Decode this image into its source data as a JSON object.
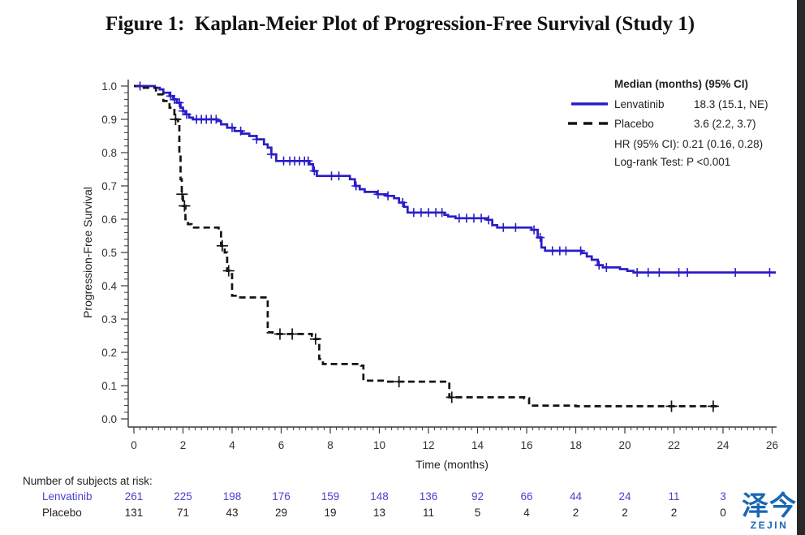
{
  "title": "Figure 1:  Kaplan-Meier Plot of Progression-Free Survival (Study 1)",
  "colors": {
    "lenvatinib_curve": "#2a1cc8",
    "lenvatinib_text": "#4a42cc",
    "placebo_curve": "#141414",
    "axis": "#3a3a3a",
    "watermark_blue": "#1a67b2"
  },
  "watermark": {
    "cjk": "泽今",
    "latin": "ZEJIN"
  },
  "chart_data": {
    "type": "line",
    "subtype": "kaplan-meier-step",
    "title": "Figure 1: Kaplan-Meier Plot of Progression-Free Survival (Study 1)",
    "xlabel": "Time (months)",
    "ylabel": "Progression-Free Survival",
    "xlim": [
      0,
      26
    ],
    "ylim": [
      0.0,
      1.0
    ],
    "xticks": [
      0,
      2,
      4,
      6,
      8,
      10,
      12,
      14,
      16,
      18,
      20,
      22,
      24,
      26
    ],
    "yticks": [
      0.0,
      0.1,
      0.2,
      0.3,
      0.4,
      0.5,
      0.6,
      0.7,
      0.8,
      0.9,
      1.0
    ],
    "x_minor_step": 0.25,
    "y_minor_step": 0.02,
    "grid": false,
    "legend": {
      "position": "top-right",
      "header": "Median (months) (95% CI)",
      "entries": [
        {
          "name": "Lenvatinib",
          "median": "18.3 (15.1, NE)",
          "style": "solid"
        },
        {
          "name": "Placebo",
          "median": "3.6 (2.2, 3.7)",
          "style": "dashed"
        }
      ],
      "hr_text": "HR (95% CI): 0.21 (0.16, 0.28)",
      "logrank_text": "Log-rank Test: P <0.001"
    },
    "series": [
      {
        "name": "Lenvatinib",
        "steps": [
          [
            0,
            1.0
          ],
          [
            0.85,
            0.995
          ],
          [
            1.05,
            0.99
          ],
          [
            1.2,
            0.98
          ],
          [
            1.45,
            0.97
          ],
          [
            1.6,
            0.96
          ],
          [
            1.75,
            0.95
          ],
          [
            1.9,
            0.935
          ],
          [
            2.0,
            0.925
          ],
          [
            2.1,
            0.915
          ],
          [
            2.25,
            0.905
          ],
          [
            2.4,
            0.9
          ],
          [
            3.4,
            0.895
          ],
          [
            3.55,
            0.885
          ],
          [
            3.8,
            0.875
          ],
          [
            4.1,
            0.865
          ],
          [
            4.4,
            0.857
          ],
          [
            4.7,
            0.85
          ],
          [
            5.0,
            0.84
          ],
          [
            5.3,
            0.825
          ],
          [
            5.45,
            0.815
          ],
          [
            5.6,
            0.795
          ],
          [
            5.8,
            0.775
          ],
          [
            7.15,
            0.765
          ],
          [
            7.3,
            0.745
          ],
          [
            7.45,
            0.73
          ],
          [
            8.8,
            0.72
          ],
          [
            9.0,
            0.7
          ],
          [
            9.2,
            0.69
          ],
          [
            9.4,
            0.682
          ],
          [
            9.9,
            0.675
          ],
          [
            10.3,
            0.67
          ],
          [
            10.6,
            0.663
          ],
          [
            10.8,
            0.65
          ],
          [
            11.0,
            0.637
          ],
          [
            11.15,
            0.62
          ],
          [
            12.65,
            0.613
          ],
          [
            12.8,
            0.608
          ],
          [
            13.1,
            0.603
          ],
          [
            14.4,
            0.598
          ],
          [
            14.6,
            0.582
          ],
          [
            14.8,
            0.575
          ],
          [
            16.2,
            0.568
          ],
          [
            16.45,
            0.545
          ],
          [
            16.6,
            0.515
          ],
          [
            16.75,
            0.505
          ],
          [
            18.25,
            0.498
          ],
          [
            18.45,
            0.488
          ],
          [
            18.65,
            0.478
          ],
          [
            18.9,
            0.462
          ],
          [
            19.1,
            0.455
          ],
          [
            19.8,
            0.45
          ],
          [
            20.1,
            0.445
          ],
          [
            20.35,
            0.44
          ],
          [
            26.15,
            0.44
          ]
        ],
        "censor_x": [
          0.25,
          1.5,
          1.65,
          1.85,
          2.0,
          2.15,
          2.55,
          2.75,
          2.95,
          3.15,
          3.35,
          4.0,
          4.35,
          5.0,
          5.6,
          6.1,
          6.35,
          6.55,
          6.75,
          6.95,
          7.1,
          7.35,
          8.05,
          8.35,
          9.05,
          9.95,
          10.35,
          10.95,
          11.4,
          11.7,
          12.0,
          12.3,
          12.55,
          13.25,
          13.55,
          13.85,
          14.15,
          14.45,
          15.05,
          15.55,
          16.3,
          16.55,
          17.05,
          17.35,
          17.6,
          18.2,
          18.95,
          19.25,
          20.5,
          20.95,
          21.4,
          22.2,
          22.55,
          24.5,
          25.9
        ]
      },
      {
        "name": "Placebo",
        "steps": [
          [
            0,
            1.0
          ],
          [
            0.4,
            0.995
          ],
          [
            0.9,
            0.975
          ],
          [
            1.2,
            0.955
          ],
          [
            1.45,
            0.935
          ],
          [
            1.65,
            0.91
          ],
          [
            1.7,
            0.9
          ],
          [
            1.8,
            0.885
          ],
          [
            1.85,
            0.8
          ],
          [
            1.9,
            0.72
          ],
          [
            1.95,
            0.675
          ],
          [
            2.0,
            0.64
          ],
          [
            2.1,
            0.6
          ],
          [
            2.2,
            0.585
          ],
          [
            2.35,
            0.575
          ],
          [
            3.45,
            0.565
          ],
          [
            3.55,
            0.52
          ],
          [
            3.7,
            0.5
          ],
          [
            3.8,
            0.445
          ],
          [
            3.9,
            0.435
          ],
          [
            4.0,
            0.37
          ],
          [
            4.2,
            0.365
          ],
          [
            5.45,
            0.26
          ],
          [
            5.65,
            0.255
          ],
          [
            7.25,
            0.25
          ],
          [
            7.35,
            0.24
          ],
          [
            7.55,
            0.18
          ],
          [
            7.7,
            0.165
          ],
          [
            9.25,
            0.16
          ],
          [
            9.35,
            0.115
          ],
          [
            10.2,
            0.112
          ],
          [
            12.75,
            0.11
          ],
          [
            12.85,
            0.065
          ],
          [
            15.9,
            0.062
          ],
          [
            16.1,
            0.04
          ],
          [
            18.0,
            0.038
          ],
          [
            23.75,
            0.038
          ]
        ],
        "censor_x": [
          1.7,
          1.96,
          2.06,
          3.6,
          3.86,
          5.95,
          6.45,
          7.4,
          10.8,
          12.95,
          21.9,
          23.6
        ]
      }
    ],
    "at_risk": {
      "label": "Number of subjects at risk:",
      "times": [
        0,
        2,
        4,
        6,
        8,
        10,
        12,
        14,
        16,
        18,
        20,
        22,
        24
      ],
      "rows": [
        {
          "name": "Lenvatinib",
          "counts": [
            261,
            225,
            198,
            176,
            159,
            148,
            136,
            92,
            66,
            44,
            24,
            11,
            3
          ]
        },
        {
          "name": "Placebo",
          "counts": [
            131,
            71,
            43,
            29,
            19,
            13,
            11,
            5,
            4,
            2,
            2,
            2,
            0
          ]
        }
      ]
    }
  }
}
